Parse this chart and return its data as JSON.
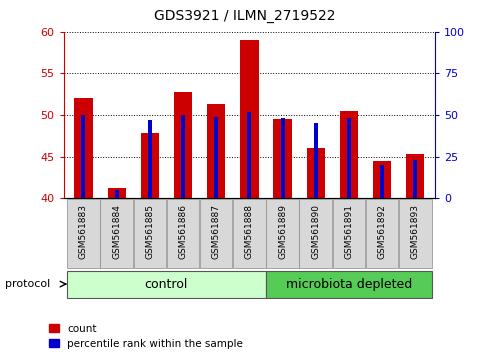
{
  "title": "GDS3921 / ILMN_2719522",
  "samples": [
    "GSM561883",
    "GSM561884",
    "GSM561885",
    "GSM561886",
    "GSM561887",
    "GSM561888",
    "GSM561889",
    "GSM561890",
    "GSM561891",
    "GSM561892",
    "GSM561893"
  ],
  "count_values": [
    52.0,
    41.2,
    47.8,
    52.8,
    51.3,
    59.0,
    49.5,
    46.0,
    50.5,
    44.5,
    45.3
  ],
  "percentile_values": [
    50,
    5,
    47,
    50,
    49,
    52,
    48,
    45,
    48,
    20,
    23
  ],
  "ylim_left": [
    40,
    60
  ],
  "ylim_right": [
    0,
    100
  ],
  "yticks_left": [
    40,
    45,
    50,
    55,
    60
  ],
  "yticks_right": [
    0,
    25,
    50,
    75,
    100
  ],
  "left_axis_color": "#cc0000",
  "right_axis_color": "#0000cc",
  "bar_color_count": "#cc0000",
  "bar_color_pct": "#0000cc",
  "red_bar_width": 0.55,
  "blue_bar_width": 0.12,
  "n_control": 6,
  "n_micro": 5,
  "control_color": "#ccffcc",
  "microbiota_color": "#55cc55",
  "control_label": "control",
  "microbiota_label": "microbiota depleted",
  "protocol_label": "protocol",
  "legend_count": "count",
  "legend_pct": "percentile rank within the sample",
  "tick_bg_color": "#d8d8d8"
}
